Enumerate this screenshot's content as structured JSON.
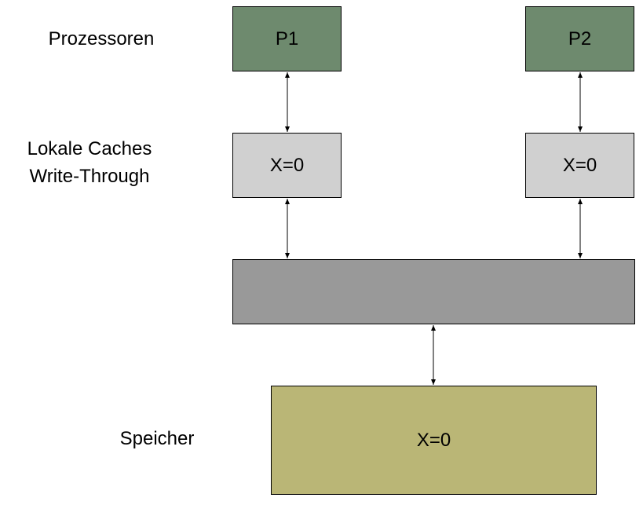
{
  "labels": {
    "processors": "Prozessoren",
    "caches_line1": "Lokale Caches",
    "caches_line2": "Write-Through",
    "memory": "Speicher"
  },
  "processors": [
    {
      "label": "P1"
    },
    {
      "label": "P2"
    }
  ],
  "caches": [
    {
      "value": "X=0"
    },
    {
      "value": "X=0"
    }
  ],
  "memory": {
    "value": "X=0"
  },
  "colors": {
    "processor": "#6e8a6e",
    "cache": "#d0d0d0",
    "bus": "#999999",
    "memory": "#bab676"
  }
}
